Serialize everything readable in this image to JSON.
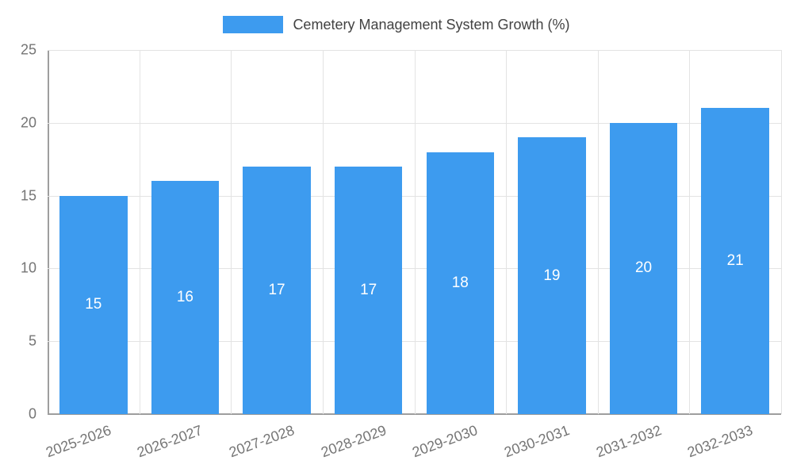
{
  "chart_data": {
    "type": "bar",
    "title": "Cemetery Management System Growth (%)",
    "categories": [
      "2025-2026",
      "2026-2027",
      "2027-2028",
      "2028-2029",
      "2029-2030",
      "2030-2031",
      "2031-2032",
      "2032-2033"
    ],
    "values": [
      15,
      16,
      17,
      17,
      18,
      19,
      20,
      21
    ],
    "xlabel": "",
    "ylabel": "",
    "ylim": [
      0,
      25
    ],
    "yticks": [
      0,
      5,
      10,
      15,
      20,
      25
    ],
    "bar_color": "#3d9bef",
    "value_label_color": "#ffffff",
    "grid": true,
    "legend_position": "top"
  }
}
